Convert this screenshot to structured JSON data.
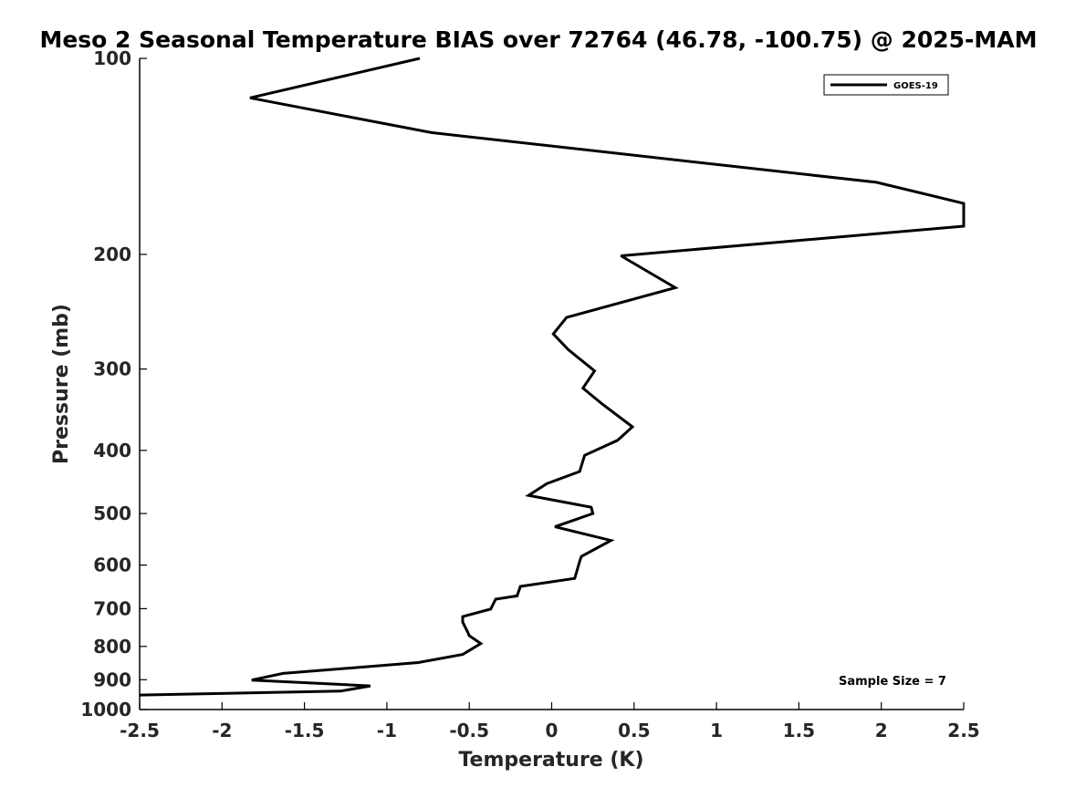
{
  "chart_data": {
    "type": "line",
    "title": "Meso 2 Seasonal Temperature BIAS over 72764 (46.78, -100.75) @ 2025-MAM",
    "xlabel": "Temperature (K)",
    "ylabel": "Pressure (mb)",
    "xlim": [
      -2.5,
      2.5
    ],
    "ylim": [
      100,
      1000
    ],
    "y_scale": "log",
    "y_reversed": true,
    "x_ticks": [
      -2.5,
      -2,
      -1.5,
      -1,
      -0.5,
      0,
      0.5,
      1,
      1.5,
      2,
      2.5
    ],
    "x_tick_labels": [
      "-2.5",
      "-2",
      "-1.5",
      "-1",
      "-0.5",
      "0",
      "0.5",
      "1",
      "1.5",
      "2",
      "2.5"
    ],
    "y_ticks": [
      100,
      200,
      300,
      400,
      500,
      600,
      700,
      800,
      900,
      1000
    ],
    "y_tick_labels": [
      "100",
      "200",
      "300",
      "400",
      "500",
      "600",
      "700",
      "800",
      "900",
      "1000"
    ],
    "grid": false,
    "legend_position": "top-right",
    "series": [
      {
        "name": "GOES-19",
        "color": "#000000",
        "x": [
          -0.8,
          -1.83,
          -0.73,
          1.97,
          2.5,
          2.5,
          0.42,
          0.75,
          0.09,
          0.01,
          0.1,
          0.26,
          0.19,
          0.31,
          0.49,
          0.4,
          0.2,
          0.17,
          -0.03,
          -0.14,
          0.24,
          0.25,
          0.02,
          0.36,
          0.18,
          0.17,
          0.14,
          -0.19,
          -0.21,
          -0.34,
          -0.37,
          -0.54,
          -0.54,
          -0.51,
          -0.5,
          -0.43,
          -0.54,
          -0.81,
          -1.63,
          -1.82,
          -1.1,
          -1.28,
          -2.5
        ],
        "y": [
          100,
          115,
          130,
          155,
          167,
          181,
          201,
          225,
          250,
          265,
          280,
          302,
          321,
          340,
          368,
          386,
          407,
          431,
          450,
          469,
          489,
          500,
          524,
          550,
          582,
          592,
          629,
          647,
          669,
          677,
          701,
          720,
          734,
          760,
          770,
          792,
          823,
          847,
          880,
          901,
          920,
          937,
          950
        ]
      }
    ],
    "annotations": [
      "Sample Size = 7"
    ]
  }
}
